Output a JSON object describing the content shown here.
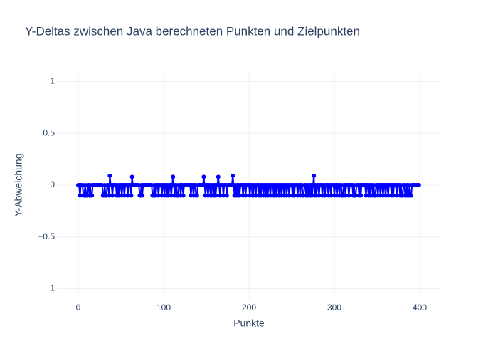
{
  "chart_data": {
    "type": "line",
    "title": "Y-Deltas zwischen Java berechneten Punkten und Zielpunkten",
    "xlabel": "Punkte",
    "ylabel": "Y-Abweichung",
    "xlim": [
      -25,
      425
    ],
    "ylim": [
      -1.1,
      1.1
    ],
    "xticks": [
      0,
      100,
      200,
      300,
      400
    ],
    "yticks": [
      {
        "value": -1,
        "label": "−1"
      },
      {
        "value": -0.5,
        "label": "−0.5"
      },
      0,
      0.5,
      1
    ],
    "grid": true,
    "series": [
      {
        "color": "#0000ff",
        "x": [
          0,
          1,
          2,
          3,
          4,
          5,
          6,
          7,
          8,
          9,
          10,
          11,
          12,
          13,
          14,
          15,
          16,
          17,
          18,
          19,
          20,
          21,
          22,
          23,
          24,
          25,
          26,
          27,
          28,
          29,
          30,
          31,
          32,
          33,
          34,
          35,
          36,
          37,
          38,
          39,
          40,
          41,
          42,
          43,
          44,
          45,
          46,
          47,
          48,
          49,
          50,
          51,
          52,
          53,
          54,
          55,
          56,
          57,
          58,
          59,
          60,
          61,
          62,
          63,
          64,
          65,
          66,
          67,
          68,
          69,
          70,
          71,
          72,
          73,
          74,
          75,
          76,
          77,
          78,
          79,
          80,
          81,
          82,
          83,
          84,
          85,
          86,
          87,
          88,
          89,
          90,
          91,
          92,
          93,
          94,
          95,
          96,
          97,
          98,
          99,
          100,
          101,
          102,
          103,
          104,
          105,
          106,
          107,
          108,
          109,
          110,
          111,
          112,
          113,
          114,
          115,
          116,
          117,
          118,
          119,
          120,
          121,
          122,
          123,
          124,
          125,
          126,
          127,
          128,
          129,
          130,
          131,
          132,
          133,
          134,
          135,
          136,
          137,
          138,
          139,
          140,
          141,
          142,
          143,
          144,
          145,
          146,
          147,
          148,
          149,
          150,
          151,
          152,
          153,
          154,
          155,
          156,
          157,
          158,
          159,
          160,
          161,
          162,
          163,
          164,
          165,
          166,
          167,
          168,
          169,
          170,
          171,
          172,
          173,
          174,
          175,
          176,
          177,
          178,
          179,
          180,
          181,
          182,
          183,
          184,
          185,
          186,
          187,
          188,
          189,
          190,
          191,
          192,
          193,
          194,
          195,
          196,
          197,
          198,
          199,
          200,
          201,
          202,
          203,
          204,
          205,
          206,
          207,
          208,
          209,
          210,
          211,
          212,
          213,
          214,
          215,
          216,
          217,
          218,
          219,
          220,
          221,
          222,
          223,
          224,
          225,
          226,
          227,
          228,
          229,
          230,
          231,
          232,
          233,
          234,
          235,
          236,
          237,
          238,
          239,
          240,
          241,
          242,
          243,
          244,
          245,
          246,
          247,
          248,
          249,
          250,
          251,
          252,
          253,
          254,
          255,
          256,
          257,
          258,
          259,
          260,
          261,
          262,
          263,
          264,
          265,
          266,
          267,
          268,
          269,
          270,
          271,
          272,
          273,
          274,
          275,
          276,
          277,
          278,
          279,
          280,
          281,
          282,
          283,
          284,
          285,
          286,
          287,
          288,
          289,
          290,
          291,
          292,
          293,
          294,
          295,
          296,
          297,
          298,
          299,
          300,
          301,
          302,
          303,
          304,
          305,
          306,
          307,
          308,
          309,
          310,
          311,
          312,
          313,
          314,
          315,
          316,
          317,
          318,
          319,
          320,
          321,
          322,
          323,
          324,
          325,
          326,
          327,
          328,
          329,
          330,
          331,
          332,
          333,
          334,
          335,
          336,
          337,
          338,
          339,
          340,
          341,
          342,
          343,
          344,
          345,
          346,
          347,
          348,
          349,
          350,
          351,
          352,
          353,
          354,
          355,
          356,
          357,
          358,
          359,
          360,
          361,
          362,
          363,
          364,
          365,
          366,
          367,
          368,
          369,
          370,
          371,
          372,
          373,
          374,
          375,
          376,
          377,
          378,
          379,
          380,
          381,
          382,
          383,
          384,
          385,
          386,
          387,
          388,
          389,
          390,
          391,
          392,
          393,
          394,
          395,
          396,
          397,
          398,
          399
        ],
        "values": [
          0,
          0,
          -0.1,
          0,
          0,
          0,
          -0.1,
          -0.1,
          0,
          -0.1,
          -0.1,
          0,
          0,
          -0.1,
          0,
          -0.1,
          -0.1,
          0,
          0,
          0,
          0,
          0,
          0,
          0,
          0,
          0,
          0,
          0,
          0,
          -0.1,
          -0.1,
          0,
          -0.1,
          -0.1,
          0,
          0,
          -0.1,
          0.09,
          0,
          0,
          -0.1,
          0,
          0,
          0,
          0,
          -0.1,
          -0.1,
          0,
          -0.1,
          0,
          0,
          -0.1,
          0,
          0,
          -0.1,
          0,
          0,
          0,
          -0.1,
          0,
          0,
          0,
          -0.1,
          0.08,
          0,
          0,
          0,
          0,
          0,
          0,
          0,
          0,
          -0.1,
          -0.1,
          0,
          -0.1,
          0,
          0,
          0,
          0,
          0,
          0,
          0,
          0,
          0,
          0,
          0,
          -0.1,
          -0.1,
          0,
          -0.1,
          0,
          0,
          0,
          -0.1,
          0,
          0,
          0,
          -0.1,
          0,
          0,
          -0.1,
          0,
          0,
          -0.1,
          0,
          -0.1,
          0,
          0,
          -0.1,
          0,
          0.08,
          0,
          -0.1,
          0,
          0,
          -0.1,
          -0.1,
          0,
          0,
          -0.1,
          0,
          0,
          -0.1,
          0,
          0,
          0,
          0,
          0,
          0,
          0,
          0,
          -0.1,
          0,
          0,
          -0.1,
          0,
          0,
          -0.1,
          -0.1,
          0,
          0,
          0,
          0,
          0,
          0,
          0,
          0.08,
          0,
          -0.1,
          0,
          0,
          -0.1,
          0,
          0,
          -0.1,
          -0.1,
          0,
          0,
          -0.1,
          0,
          -0.1,
          0,
          0,
          0.08,
          0,
          -0.1,
          0,
          0,
          0,
          -0.1,
          0,
          0,
          0,
          -0.1,
          0,
          0,
          0,
          0,
          0,
          0,
          0.09,
          0,
          -0.1,
          0,
          -0.1,
          0,
          -0.1,
          0,
          -0.1,
          0,
          0,
          0,
          -0.1,
          0,
          0,
          -0.1,
          0,
          0,
          0,
          0,
          -0.1,
          0,
          0,
          -0.1,
          -0.1,
          0,
          0,
          -0.1,
          0,
          0,
          0,
          -0.1,
          0,
          -0.1,
          0,
          0,
          -0.1,
          0,
          0,
          -0.1,
          0,
          -0.1,
          0,
          0,
          -0.1,
          0,
          0,
          0,
          -0.1,
          0,
          0,
          -0.1,
          0,
          0,
          -0.1,
          0,
          0,
          -0.1,
          0,
          0,
          -0.1,
          0,
          0,
          -0.1,
          0,
          0,
          -0.1,
          0,
          0,
          0,
          -0.1,
          0,
          -0.1,
          0,
          0,
          0,
          -0.1,
          0,
          0,
          -0.1,
          0,
          0,
          -0.1,
          -0.1,
          0,
          0,
          -0.1,
          0,
          -0.1,
          0,
          0,
          -0.1,
          0,
          -0.1,
          0,
          0.09,
          -0.1,
          0,
          -0.1,
          0,
          0,
          -0.1,
          0,
          0,
          0,
          -0.1,
          0,
          0,
          -0.1,
          0,
          0,
          0,
          -0.1,
          0,
          0,
          -0.1,
          0,
          0,
          0,
          -0.1,
          0,
          0,
          -0.1,
          0,
          0,
          -0.1,
          0,
          0,
          -0.1,
          -0.1,
          0,
          0,
          -0.1,
          0,
          0,
          0,
          -0.1,
          0,
          0,
          0,
          0,
          -0.1,
          0,
          -0.1,
          -0.1,
          0,
          0,
          0,
          -0.1,
          0,
          -0.1,
          0,
          0,
          0,
          0,
          0,
          -0.1,
          0,
          0,
          -0.1,
          0,
          -0.1,
          0,
          0,
          -0.1,
          0,
          -0.1,
          -0.1,
          0,
          0,
          -0.1,
          0,
          0,
          -0.1,
          0,
          0,
          -0.1,
          0,
          0,
          -0.1,
          0,
          0,
          -0.1,
          0,
          0,
          0,
          -0.1,
          0,
          -0.1,
          0,
          0,
          0,
          -0.1,
          0,
          0,
          0,
          -0.1,
          0,
          -0.1,
          -0.1,
          0,
          0,
          -0.1,
          -0.1,
          0,
          -0.1,
          -0.1,
          0,
          -0.1,
          -0.1,
          0,
          0,
          0,
          0,
          0,
          0,
          0,
          0,
          0
        ]
      }
    ]
  }
}
